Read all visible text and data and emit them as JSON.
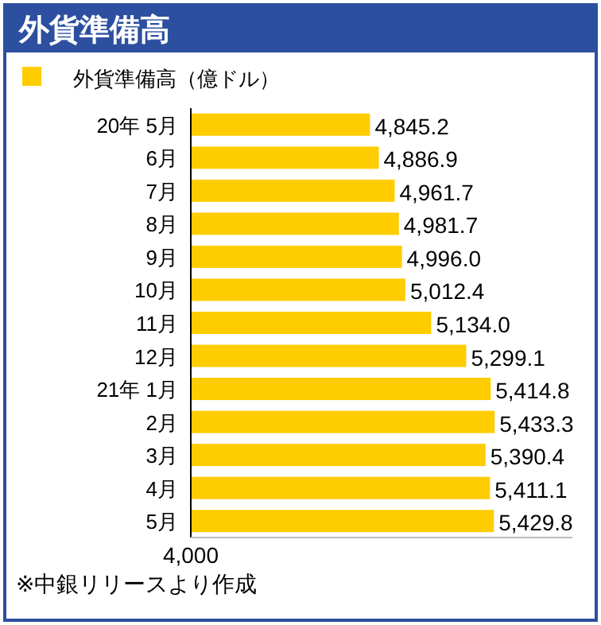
{
  "chart_data": {
    "type": "bar",
    "orientation": "horizontal",
    "title": "外貨準備高",
    "categories": [
      "20年 5月",
      "6月",
      "7月",
      "8月",
      "9月",
      "10月",
      "11月",
      "12月",
      "21年 1月",
      "2月",
      "3月",
      "4月",
      "5月"
    ],
    "series": [
      {
        "name": "外貨準備高（億ドル）",
        "color": "#ffcc00",
        "values": [
          4845.2,
          4886.9,
          4961.7,
          4981.7,
          4996.0,
          5012.4,
          5134.0,
          5299.1,
          5414.8,
          5433.3,
          5390.4,
          5411.1,
          5429.8
        ],
        "value_labels": [
          "4,845.2",
          "4,886.9",
          "4,961.7",
          "4,981.7",
          "4,996.0",
          "5,012.4",
          "5,134.0",
          "5,299.1",
          "5,414.8",
          "5,433.3",
          "5,390.4",
          "5,411.1",
          "5,429.8"
        ]
      }
    ],
    "xlim": [
      4000,
      5800
    ],
    "legend": "top left",
    "annotations": [
      "4,000",
      "※中銀リリースより作成"
    ]
  }
}
